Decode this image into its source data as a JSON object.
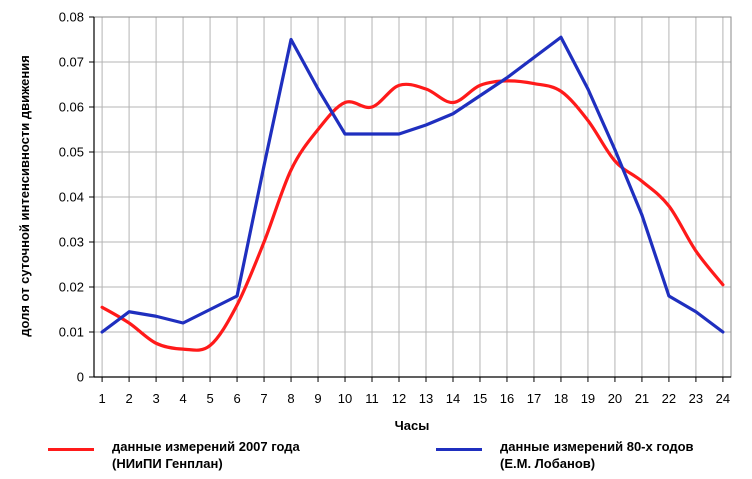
{
  "chart_data": {
    "type": "line",
    "title": "",
    "xlabel": "Часы",
    "ylabel": "доля от суточной интенсивности движения",
    "x": [
      1,
      2,
      3,
      4,
      5,
      6,
      7,
      8,
      9,
      10,
      11,
      12,
      13,
      14,
      15,
      16,
      17,
      18,
      19,
      20,
      21,
      22,
      23,
      24
    ],
    "xlim": [
      0.7,
      24.3
    ],
    "ylim": [
      0,
      0.08
    ],
    "yticks": [
      "0",
      "0.01",
      "0.02",
      "0.03",
      "0.04",
      "0.05",
      "0.06",
      "0.07",
      "0.08"
    ],
    "grid": true,
    "legend_position": "bottom",
    "series": [
      {
        "name_line1": "данные измерений 2007 года",
        "name_line2": "(НИиПИ Генплан)",
        "color": "#ff1a1a",
        "smooth": true,
        "values": [
          0.0155,
          0.012,
          0.0075,
          0.0062,
          0.007,
          0.016,
          0.03,
          0.046,
          0.055,
          0.061,
          0.06,
          0.0648,
          0.064,
          0.061,
          0.0648,
          0.0658,
          0.0652,
          0.0635,
          0.057,
          0.048,
          0.0435,
          0.038,
          0.028,
          0.0205
        ]
      },
      {
        "name_line1": "данные измерений 80-х годов",
        "name_line2": "(Е.М. Лобанов)",
        "color": "#1f2fbf",
        "smooth": false,
        "values": [
          0.01,
          0.0145,
          0.0135,
          0.012,
          0.015,
          0.018,
          0.047,
          0.075,
          0.064,
          0.054,
          0.054,
          0.054,
          0.056,
          0.0585,
          0.0625,
          0.0665,
          0.071,
          0.0755,
          0.064,
          0.0505,
          0.036,
          0.018,
          0.0145,
          0.01
        ]
      }
    ]
  }
}
